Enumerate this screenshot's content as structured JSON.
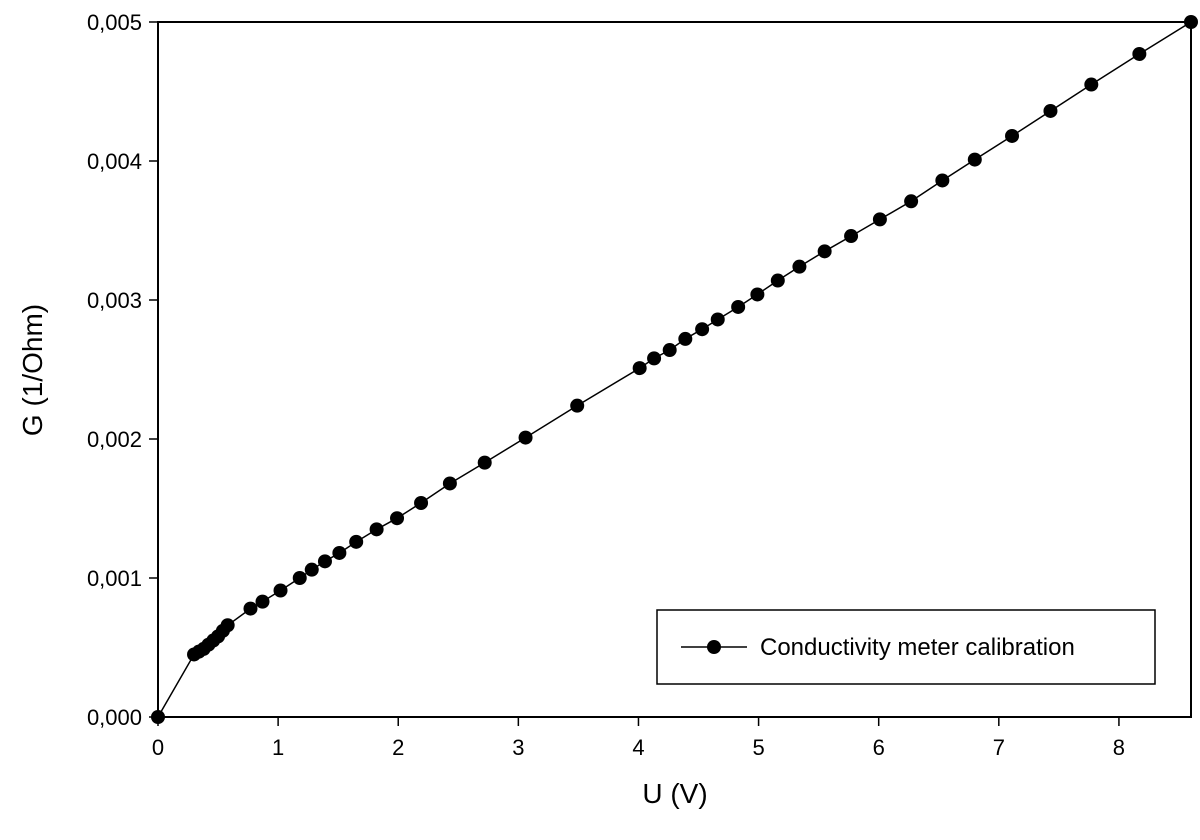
{
  "chart_data": {
    "type": "line",
    "title": "",
    "xlabel": "U (V)",
    "ylabel": "G (1/Ohm)",
    "xlim": [
      0,
      8.6
    ],
    "ylim": [
      0.0,
      0.005
    ],
    "x_ticks": [
      0,
      1,
      2,
      3,
      4,
      5,
      6,
      7,
      8
    ],
    "x_tick_labels": [
      "0",
      "1",
      "2",
      "3",
      "4",
      "5",
      "6",
      "7",
      "8"
    ],
    "y_ticks": [
      0.0,
      0.001,
      0.002,
      0.003,
      0.004,
      0.005
    ],
    "y_tick_labels": [
      "0,000",
      "0,001",
      "0,002",
      "0,003",
      "0,004",
      "0,005"
    ],
    "grid": false,
    "legend_position": "bottom-right",
    "series": [
      {
        "name": "Conductivity meter calibration",
        "color": "#000000",
        "marker": "filled-circle",
        "x": [
          0.0,
          0.3,
          0.34,
          0.38,
          0.42,
          0.46,
          0.5,
          0.54,
          0.58,
          0.77,
          0.87,
          1.02,
          1.18,
          1.28,
          1.39,
          1.51,
          1.65,
          1.82,
          1.99,
          2.19,
          2.43,
          2.72,
          3.06,
          3.49,
          4.01,
          4.13,
          4.26,
          4.39,
          4.53,
          4.66,
          4.83,
          4.99,
          5.16,
          5.34,
          5.55,
          5.77,
          6.01,
          6.27,
          6.53,
          6.8,
          7.11,
          7.43,
          7.77,
          8.17,
          8.6
        ],
        "y": [
          0.0,
          0.00045,
          0.00047,
          0.00049,
          0.00052,
          0.00055,
          0.00058,
          0.00062,
          0.00066,
          0.00078,
          0.00083,
          0.00091,
          0.001,
          0.00106,
          0.00112,
          0.00118,
          0.00126,
          0.00135,
          0.00143,
          0.00154,
          0.00168,
          0.00183,
          0.00201,
          0.00224,
          0.00251,
          0.00258,
          0.00264,
          0.00272,
          0.00279,
          0.00286,
          0.00295,
          0.00304,
          0.00314,
          0.00324,
          0.00335,
          0.00346,
          0.00358,
          0.00371,
          0.00386,
          0.00401,
          0.00418,
          0.00436,
          0.00455,
          0.00477,
          0.005
        ]
      }
    ]
  }
}
